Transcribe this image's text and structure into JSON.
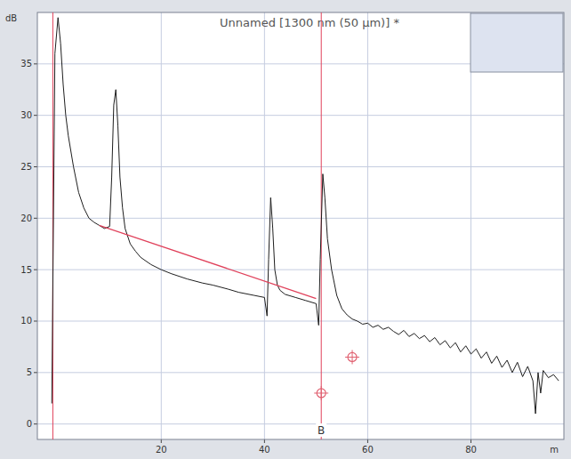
{
  "chart_data": {
    "type": "line",
    "title": "Unnamed [1300 nm (50 µm)] *",
    "y_label": "dB",
    "x_label": "m",
    "xlim": [
      -4,
      98
    ],
    "ylim": [
      -1.5,
      40
    ],
    "xticks": [
      20,
      40,
      60,
      80
    ],
    "yticks": [
      0,
      5,
      10,
      15,
      20,
      25,
      30,
      35
    ],
    "grid": true,
    "series": [
      {
        "color": "#1e1e1e",
        "line_style": "solid",
        "x": [
          -1.2,
          -0.6,
          0,
          0.5,
          1,
          1.5,
          2,
          3,
          4,
          5,
          6,
          7,
          8,
          9,
          10,
          10.4,
          10.8,
          11.2,
          11.6,
          12,
          12.5,
          13,
          14,
          15,
          16,
          18,
          20,
          22,
          25,
          28,
          30,
          33,
          35,
          38,
          40,
          40.5,
          40.8,
          41.2,
          41.6,
          42,
          42.5,
          43,
          44,
          46,
          48,
          50,
          50.5,
          50.8,
          51.3,
          51.7,
          52.2,
          53,
          54,
          55,
          56,
          57,
          58,
          59,
          60,
          61,
          62,
          63,
          64,
          65,
          66,
          67,
          68,
          69,
          70,
          71,
          72,
          73,
          74,
          75,
          76,
          77,
          78,
          79,
          80,
          81,
          82,
          83,
          84,
          85,
          86,
          87,
          88,
          89,
          90,
          91,
          92,
          92.5,
          93,
          93.5,
          94,
          95,
          96,
          97
        ],
        "values": [
          2,
          36,
          39.5,
          37,
          33,
          30,
          28,
          25,
          22.5,
          21,
          20,
          19.6,
          19.3,
          19,
          19.2,
          24,
          31,
          32.5,
          29,
          24,
          21,
          19,
          17.5,
          16.8,
          16.2,
          15.5,
          15,
          14.6,
          14.1,
          13.7,
          13.5,
          13.1,
          12.8,
          12.5,
          12.3,
          10.5,
          16,
          22,
          19,
          15,
          13.5,
          13,
          12.6,
          12.3,
          12,
          11.7,
          9.6,
          16,
          24.3,
          22,
          18,
          15,
          12.5,
          11.2,
          10.6,
          10.2,
          10,
          9.7,
          9.8,
          9.4,
          9.6,
          9.2,
          9.4,
          9,
          8.7,
          9.1,
          8.5,
          8.8,
          8.3,
          8.6,
          8,
          8.4,
          7.7,
          8.1,
          7.4,
          7.9,
          7,
          7.6,
          6.8,
          7.3,
          6.4,
          7,
          5.9,
          6.6,
          5.5,
          6.2,
          5,
          6,
          4.6,
          5.6,
          4.2,
          1,
          5,
          3,
          5.2,
          4.5,
          4.8,
          4.2
        ]
      },
      {
        "color": "#e0405a",
        "line_style": "solid",
        "x": [
          8,
          50
        ],
        "values": [
          19.3,
          12.2
        ]
      }
    ],
    "cursors": [
      {
        "x": -1
      },
      {
        "x": 51,
        "label": "B"
      }
    ],
    "points": [
      {
        "x": 51,
        "y": 3
      },
      {
        "x": 57,
        "y": 6.5
      }
    ]
  }
}
